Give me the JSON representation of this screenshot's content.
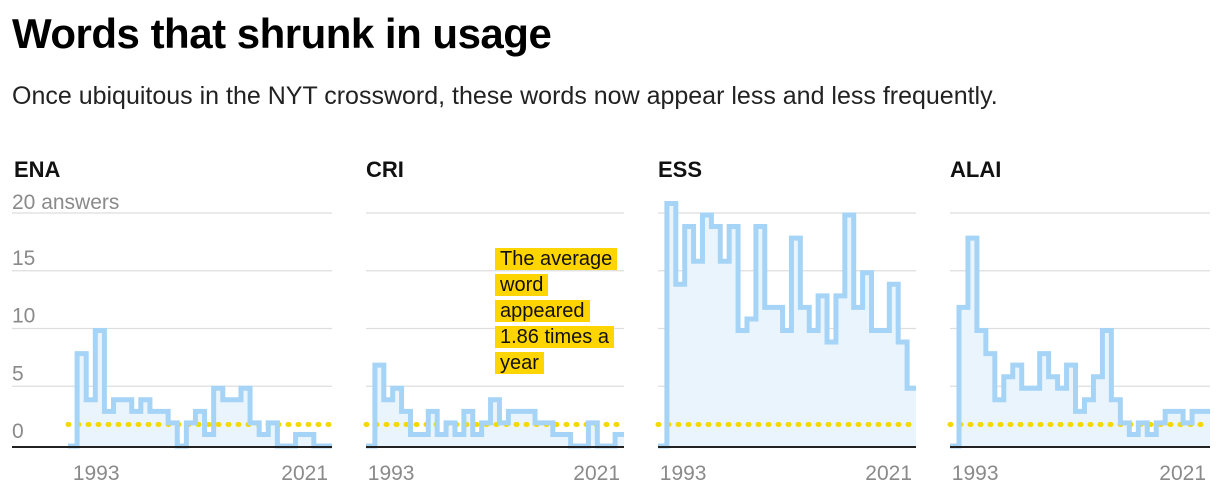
{
  "title": "Words that shrunk in usage",
  "subtitle": "Once ubiquitous in the NYT crossword, these words now appear less and less frequently.",
  "annotation": "The average word appeared 1.86 times a year",
  "colors": {
    "line": "#a6d4f7",
    "area": "#eaf4fd",
    "average": "#f5d800",
    "annotation_bg": "#ffd500"
  },
  "chart_data": [
    {
      "type": "line",
      "title": "ENA",
      "ylabel_top": "20 answers",
      "yticks": [
        "15",
        "10",
        "5",
        "0"
      ],
      "xticks": [
        "1993",
        "2021"
      ],
      "ylim": [
        0,
        20
      ],
      "years": [
        1993,
        2021
      ],
      "average": 1.86,
      "x": [
        1993,
        1994,
        1995,
        1996,
        1997,
        1998,
        1999,
        2000,
        2001,
        2002,
        2003,
        2004,
        2005,
        2006,
        2007,
        2008,
        2009,
        2010,
        2011,
        2012,
        2013,
        2014,
        2015,
        2016,
        2017,
        2018,
        2019,
        2020,
        2021
      ],
      "values": [
        0,
        8,
        4,
        10,
        3,
        4,
        4,
        3,
        4,
        3,
        3,
        2,
        0,
        2,
        3,
        1,
        5,
        4,
        4,
        5,
        2,
        1,
        2,
        0,
        0,
        1,
        1,
        0,
        0
      ]
    },
    {
      "type": "line",
      "title": "CRI",
      "ylim": [
        0,
        20
      ],
      "xticks": [
        "1993",
        "2021"
      ],
      "average": 1.86,
      "x": [
        1993,
        1994,
        1995,
        1996,
        1997,
        1998,
        1999,
        2000,
        2001,
        2002,
        2003,
        2004,
        2005,
        2006,
        2007,
        2008,
        2009,
        2010,
        2011,
        2012,
        2013,
        2014,
        2015,
        2016,
        2017,
        2018,
        2019,
        2020,
        2021
      ],
      "values": [
        0,
        7,
        4,
        5,
        3,
        1,
        1,
        3,
        1,
        2,
        1,
        3,
        1,
        2,
        4,
        2,
        3,
        3,
        3,
        2,
        2,
        1,
        1,
        0,
        0,
        2,
        0,
        0,
        1
      ]
    },
    {
      "type": "line",
      "title": "ESS",
      "ylim": [
        0,
        20
      ],
      "xticks": [
        "1993",
        "2021"
      ],
      "average": 1.86,
      "x": [
        1993,
        1994,
        1995,
        1996,
        1997,
        1998,
        1999,
        2000,
        2001,
        2002,
        2003,
        2004,
        2005,
        2006,
        2007,
        2008,
        2009,
        2010,
        2011,
        2012,
        2013,
        2014,
        2015,
        2016,
        2017,
        2018,
        2019,
        2020,
        2021
      ],
      "values": [
        0,
        21,
        14,
        19,
        16,
        20,
        19,
        16,
        19,
        10,
        11,
        19,
        12,
        12,
        10,
        18,
        12,
        10,
        13,
        9,
        13,
        20,
        12,
        15,
        10,
        10,
        14,
        9,
        5
      ]
    },
    {
      "type": "line",
      "title": "ALAI",
      "ylim": [
        0,
        20
      ],
      "xticks": [
        "1993",
        "2021"
      ],
      "average": 1.86,
      "x": [
        1993,
        1994,
        1995,
        1996,
        1997,
        1998,
        1999,
        2000,
        2001,
        2002,
        2003,
        2004,
        2005,
        2006,
        2007,
        2008,
        2009,
        2010,
        2011,
        2012,
        2013,
        2014,
        2015,
        2016,
        2017,
        2018,
        2019,
        2020,
        2021
      ],
      "values": [
        0,
        12,
        18,
        10,
        8,
        4,
        6,
        7,
        5,
        5,
        8,
        6,
        5,
        7,
        3,
        4,
        6,
        10,
        4,
        2,
        1,
        2,
        1,
        2,
        3,
        3,
        2,
        3,
        3
      ]
    }
  ]
}
